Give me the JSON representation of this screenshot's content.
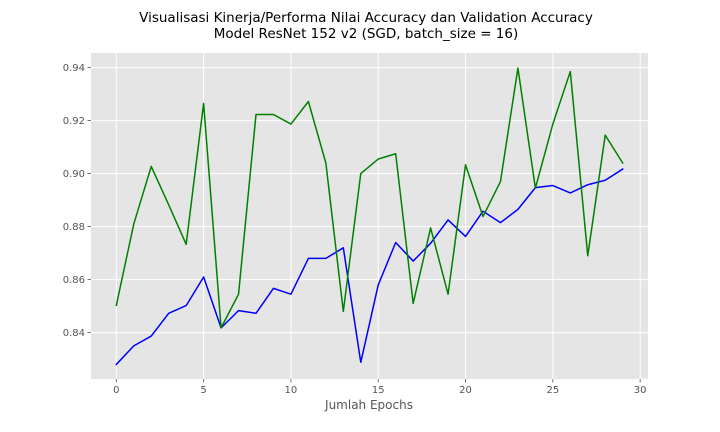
{
  "chart_data": {
    "type": "line",
    "title_line1": "Visualisasi Kinerja/Performa Nilai Accuracy dan Validation Accuracy",
    "title_line2": "Model ResNet 152 v2 (SGD, batch_size = 16)",
    "xlabel": "Jumlah Epochs",
    "ylabel": "",
    "xlim": [
      -1.45,
      30.45
    ],
    "ylim": [
      0.8225,
      0.9455
    ],
    "x_ticks": [
      0,
      5,
      10,
      15,
      20,
      25,
      30
    ],
    "y_ticks": [
      0.84,
      0.86,
      0.88,
      0.9,
      0.92,
      0.94
    ],
    "grid": true,
    "background": "#e5e5e5",
    "x": [
      0,
      1,
      2,
      3,
      4,
      5,
      6,
      7,
      8,
      9,
      10,
      11,
      12,
      13,
      14,
      15,
      16,
      17,
      18,
      19,
      20,
      21,
      22,
      23,
      24,
      25,
      26,
      27,
      28,
      29
    ],
    "series": [
      {
        "color": "#0000ff",
        "values": [
          0.828,
          0.835,
          0.8387,
          0.8473,
          0.8502,
          0.861,
          0.8418,
          0.8483,
          0.8473,
          0.8567,
          0.8545,
          0.868,
          0.868,
          0.872,
          0.8288,
          0.858,
          0.874,
          0.867,
          0.8737,
          0.8825,
          0.8763,
          0.8858,
          0.8815,
          0.8865,
          0.8947,
          0.8955,
          0.8927,
          0.8958,
          0.8975,
          0.9017
        ]
      },
      {
        "color": "#008000",
        "values": [
          0.8503,
          0.881,
          0.9027,
          0.8882,
          0.8733,
          0.9265,
          0.8418,
          0.8545,
          0.9223,
          0.9223,
          0.9187,
          0.9272,
          0.904,
          0.848,
          0.9,
          0.9055,
          0.9075,
          0.851,
          0.8795,
          0.8545,
          0.9033,
          0.8838,
          0.897,
          0.9398,
          0.8945,
          0.9187,
          0.9385,
          0.869,
          0.9145,
          0.904
        ]
      }
    ]
  }
}
